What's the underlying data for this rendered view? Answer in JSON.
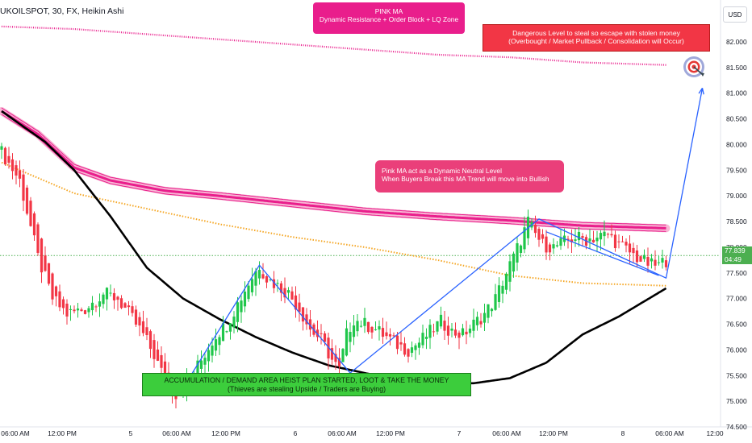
{
  "header": {
    "symbol": "UKOILSPOT, 30, FX, Heikin Ashi",
    "currency_button": "USD"
  },
  "callouts": {
    "pink_ma": [
      "PINK MA",
      "Dynamic Resistance + Order Block + LQ Zone"
    ],
    "danger": [
      "Dangerous Level to steal so escape with stolen money",
      "(Overbought / Market Pullback / Consolidation will Occur)"
    ],
    "neutral": [
      "Pink MA act as a Dynamic Neutral Level",
      "When Buyers Break this MA Trend will move into Bullish"
    ],
    "accumulation": [
      "ACCUMULATION / DEMAND AREA HEIST PLAN STARTED, LOOT & TAKE THE MONEY",
      "(Thieves are stealing Upside / Traders are Buying)"
    ]
  },
  "target_icon": "target-bullseye-icon",
  "current_price": {
    "value": "77.839",
    "countdown": "04:49"
  },
  "colors": {
    "up": "#26a69a",
    "up_bright": "#1fc64a",
    "down": "#f23645",
    "pink_ma": "#e91e8c",
    "sma_black": "#000000",
    "orange_ma": "#f5a623",
    "projection": "#2962ff",
    "current_line": "#4caf50"
  },
  "chart_data": {
    "type": "candlestick",
    "style": "Heikin Ashi",
    "timeframe": "30",
    "x_tick_labels": [
      "06:00 AM",
      "12:00 PM",
      "5",
      "06:00 AM",
      "12:00 PM",
      "6",
      "06:00 AM",
      "12:00 PM",
      "7",
      "06:00 AM",
      "12:00 PM",
      "8",
      "06:00 AM",
      "12:00"
    ],
    "y_tick_labels": [
      "74.500",
      "75.000",
      "75.500",
      "76.000",
      "76.500",
      "77.000",
      "77.500",
      "78.000",
      "78.500",
      "79.000",
      "79.500",
      "80.000",
      "80.500",
      "81.000",
      "81.500",
      "82.000"
    ],
    "ylim": [
      74.2,
      82.5
    ],
    "grid": false,
    "close_path": [
      [
        0,
        79.85
      ],
      [
        5,
        79.3
      ],
      [
        10,
        77.8
      ],
      [
        14,
        77.0
      ],
      [
        18,
        76.7
      ],
      [
        23,
        76.8
      ],
      [
        28,
        77.1
      ],
      [
        32,
        77.0
      ],
      [
        36,
        76.6
      ],
      [
        39,
        76.3
      ],
      [
        42,
        75.9
      ],
      [
        45,
        75.4
      ],
      [
        48,
        75.15
      ],
      [
        51,
        75.35
      ],
      [
        55,
        75.8
      ],
      [
        59,
        76.3
      ],
      [
        62,
        76.5
      ],
      [
        65,
        76.9
      ],
      [
        68,
        77.3
      ],
      [
        71,
        77.65
      ],
      [
        73,
        77.4
      ],
      [
        76,
        77.25
      ],
      [
        79,
        77.1
      ],
      [
        82,
        76.8
      ],
      [
        85,
        76.4
      ],
      [
        88,
        76.2
      ],
      [
        91,
        75.8
      ],
      [
        93,
        75.6
      ],
      [
        95,
        76.3
      ],
      [
        97,
        76.6
      ],
      [
        100,
        76.5
      ],
      [
        103,
        76.4
      ],
      [
        106,
        76.25
      ],
      [
        109,
        76.1
      ],
      [
        112,
        76.0
      ],
      [
        115,
        76.15
      ],
      [
        118,
        76.35
      ],
      [
        121,
        76.55
      ],
      [
        124,
        76.35
      ],
      [
        127,
        76.3
      ],
      [
        130,
        76.5
      ],
      [
        133,
        76.7
      ],
      [
        136,
        77.0
      ],
      [
        139,
        77.5
      ],
      [
        141,
        77.8
      ],
      [
        143,
        78.15
      ],
      [
        145,
        78.5
      ],
      [
        147,
        78.25
      ],
      [
        149,
        78.05
      ],
      [
        152,
        78.0
      ],
      [
        155,
        78.1
      ],
      [
        158,
        78.2
      ],
      [
        161,
        78.15
      ],
      [
        164,
        78.2
      ],
      [
        167,
        78.25
      ],
      [
        170,
        78.05
      ],
      [
        173,
        77.9
      ],
      [
        176,
        77.75
      ],
      [
        179,
        77.65
      ],
      [
        181,
        77.65
      ],
      [
        183,
        77.75
      ]
    ],
    "series": [
      {
        "name": "PINK MA",
        "type": "line",
        "values": [
          [
            0,
            80.65
          ],
          [
            10,
            80.2
          ],
          [
            20,
            79.55
          ],
          [
            30,
            79.3
          ],
          [
            45,
            79.1
          ],
          [
            60,
            79.0
          ],
          [
            80,
            78.85
          ],
          [
            100,
            78.7
          ],
          [
            120,
            78.6
          ],
          [
            140,
            78.52
          ],
          [
            160,
            78.42
          ],
          [
            183,
            78.37
          ]
        ]
      },
      {
        "name": "",
        "type": "line",
        "values": [
          [
            0,
            80.65
          ],
          [
            12,
            80.05
          ],
          [
            20,
            79.5
          ],
          [
            30,
            78.6
          ],
          [
            40,
            77.6
          ],
          [
            50,
            77.0
          ],
          [
            60,
            76.6
          ],
          [
            70,
            76.25
          ],
          [
            80,
            75.95
          ],
          [
            90,
            75.7
          ],
          [
            100,
            75.55
          ],
          [
            110,
            75.4
          ],
          [
            120,
            75.35
          ],
          [
            130,
            75.35
          ],
          [
            140,
            75.45
          ],
          [
            150,
            75.75
          ],
          [
            160,
            76.3
          ],
          [
            170,
            76.65
          ],
          [
            183,
            77.2
          ]
        ]
      },
      {
        "name": "",
        "type": "dotted-line",
        "values": [
          [
            0,
            79.65
          ],
          [
            20,
            79.05
          ],
          [
            40,
            78.75
          ],
          [
            60,
            78.45
          ],
          [
            80,
            78.2
          ],
          [
            100,
            78.0
          ],
          [
            120,
            77.75
          ],
          [
            140,
            77.45
          ],
          [
            160,
            77.3
          ],
          [
            183,
            77.25
          ]
        ]
      },
      {
        "name": "",
        "type": "dotted-line",
        "values": [
          [
            0,
            82.3
          ],
          [
            20,
            82.25
          ],
          [
            40,
            82.15
          ],
          [
            60,
            82.05
          ],
          [
            80,
            81.95
          ],
          [
            100,
            81.85
          ],
          [
            120,
            81.75
          ],
          [
            140,
            81.7
          ],
          [
            160,
            81.6
          ],
          [
            183,
            81.55
          ]
        ]
      },
      {
        "name": "",
        "type": "line",
        "values": [
          [
            49,
            75.15
          ],
          [
            71,
            77.65
          ],
          [
            96,
            75.55
          ],
          [
            148,
            78.55
          ],
          [
            183,
            77.4
          ],
          [
            193,
            81.1
          ]
        ]
      }
    ],
    "current_price": 77.839
  }
}
